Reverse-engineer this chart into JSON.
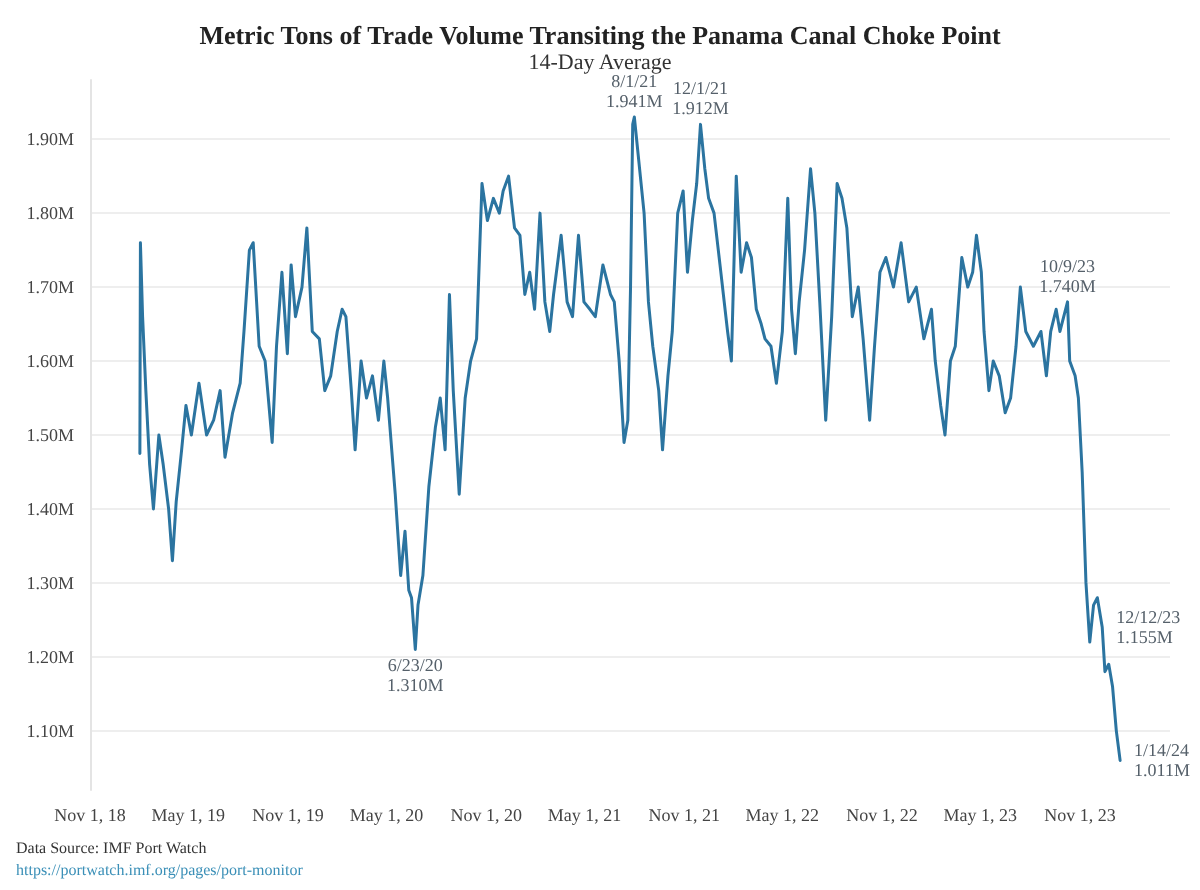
{
  "chart_data": {
    "type": "line",
    "title": "Metric Tons of Trade Volume Transiting the Panama Canal Choke Point",
    "subtitle": "14-Day Average",
    "x": [
      "2019-02-01",
      "2019-02-02",
      "2019-02-06",
      "2019-02-12",
      "2019-02-19",
      "2019-02-26",
      "2019-03-08",
      "2019-03-16",
      "2019-03-26",
      "2019-04-02",
      "2019-04-09",
      "2019-04-19",
      "2019-04-27",
      "2019-05-07",
      "2019-05-21",
      "2019-06-04",
      "2019-06-17",
      "2019-06-29",
      "2019-07-08",
      "2019-07-22",
      "2019-08-05",
      "2019-08-12",
      "2019-08-22",
      "2019-08-29",
      "2019-09-09",
      "2019-09-20",
      "2019-10-03",
      "2019-10-11",
      "2019-10-21",
      "2019-10-31",
      "2019-11-07",
      "2019-11-15",
      "2019-11-27",
      "2019-12-06",
      "2019-12-16",
      "2019-12-29",
      "2020-01-08",
      "2020-01-19",
      "2020-01-31",
      "2020-02-09",
      "2020-02-16",
      "2020-02-26",
      "2020-03-04",
      "2020-03-15",
      "2020-03-25",
      "2020-04-05",
      "2020-04-16",
      "2020-04-26",
      "2020-05-03",
      "2020-05-17",
      "2020-05-27",
      "2020-06-04",
      "2020-06-11",
      "2020-06-16",
      "2020-06-23",
      "2020-06-28",
      "2020-07-07",
      "2020-07-18",
      "2020-07-30",
      "2020-08-08",
      "2020-08-17",
      "2020-08-25",
      "2020-09-01",
      "2020-09-12",
      "2020-09-23",
      "2020-10-03",
      "2020-10-14",
      "2020-10-24",
      "2020-11-03",
      "2020-11-14",
      "2020-11-25",
      "2020-12-02",
      "2020-12-12",
      "2020-12-23",
      "2021-01-02",
      "2021-01-11",
      "2021-01-20",
      "2021-01-29",
      "2021-02-08",
      "2021-02-17",
      "2021-02-26",
      "2021-03-05",
      "2021-03-19",
      "2021-03-30",
      "2021-04-09",
      "2021-04-20",
      "2021-04-30",
      "2021-05-11",
      "2021-05-21",
      "2021-06-04",
      "2021-06-18",
      "2021-06-25",
      "2021-07-04",
      "2021-07-13",
      "2021-07-20",
      "2021-07-25",
      "2021-07-29",
      "2021-08-01",
      "2021-08-19",
      "2021-08-27",
      "2021-09-04",
      "2021-09-15",
      "2021-09-22",
      "2021-10-02",
      "2021-10-10",
      "2021-10-20",
      "2021-10-30",
      "2021-11-07",
      "2021-11-16",
      "2021-11-24",
      "2021-12-01",
      "2021-12-09",
      "2021-12-16",
      "2021-12-26",
      "2022-01-06",
      "2022-01-20",
      "2022-01-27",
      "2022-02-05",
      "2022-02-14",
      "2022-02-24",
      "2022-03-05",
      "2022-03-14",
      "2022-03-23",
      "2022-03-30",
      "2022-04-10",
      "2022-04-20",
      "2022-05-01",
      "2022-05-11",
      "2022-05-18",
      "2022-05-25",
      "2022-06-01",
      "2022-06-11",
      "2022-06-22",
      "2022-06-30",
      "2022-07-09",
      "2022-07-20",
      "2022-07-31",
      "2022-08-10",
      "2022-08-19",
      "2022-08-28",
      "2022-09-07",
      "2022-09-18",
      "2022-09-27",
      "2022-10-09",
      "2022-10-18",
      "2022-10-28",
      "2022-11-08",
      "2022-11-22",
      "2022-12-06",
      "2022-12-20",
      "2023-01-03",
      "2023-01-17",
      "2023-01-31",
      "2023-02-07",
      "2023-02-17",
      "2023-02-25",
      "2023-03-07",
      "2023-03-16",
      "2023-03-28",
      "2023-04-08",
      "2023-04-17",
      "2023-04-24",
      "2023-05-03",
      "2023-05-08",
      "2023-05-17",
      "2023-05-25",
      "2023-06-05",
      "2023-06-16",
      "2023-06-26",
      "2023-07-06",
      "2023-07-14",
      "2023-07-24",
      "2023-08-07",
      "2023-08-21",
      "2023-08-31",
      "2023-09-08",
      "2023-09-18",
      "2023-09-25",
      "2023-10-09",
      "2023-10-13",
      "2023-10-23",
      "2023-10-29",
      "2023-11-05",
      "2023-11-12",
      "2023-11-19",
      "2023-11-26",
      "2023-12-03",
      "2023-12-12",
      "2023-12-17",
      "2023-12-24",
      "2023-12-31",
      "2024-01-07",
      "2024-01-14"
    ],
    "series": [
      {
        "color": "#2b74a0",
        "values": [
          1.475,
          1.76,
          1.66,
          1.56,
          1.46,
          1.4,
          1.5,
          1.46,
          1.4,
          1.33,
          1.41,
          1.48,
          1.54,
          1.5,
          1.57,
          1.5,
          1.52,
          1.56,
          1.47,
          1.53,
          1.57,
          1.64,
          1.75,
          1.76,
          1.62,
          1.6,
          1.49,
          1.62,
          1.72,
          1.61,
          1.73,
          1.66,
          1.7,
          1.78,
          1.64,
          1.63,
          1.56,
          1.58,
          1.64,
          1.67,
          1.66,
          1.56,
          1.48,
          1.6,
          1.55,
          1.58,
          1.52,
          1.6,
          1.55,
          1.42,
          1.31,
          1.37,
          1.29,
          1.28,
          1.21,
          1.27,
          1.31,
          1.43,
          1.51,
          1.55,
          1.48,
          1.69,
          1.56,
          1.42,
          1.55,
          1.6,
          1.63,
          1.84,
          1.79,
          1.82,
          1.8,
          1.83,
          1.85,
          1.78,
          1.77,
          1.69,
          1.72,
          1.67,
          1.8,
          1.68,
          1.64,
          1.69,
          1.77,
          1.68,
          1.66,
          1.77,
          1.68,
          1.67,
          1.66,
          1.73,
          1.69,
          1.68,
          1.6,
          1.49,
          1.52,
          1.7,
          1.92,
          1.93,
          1.8,
          1.68,
          1.62,
          1.56,
          1.48,
          1.58,
          1.64,
          1.8,
          1.83,
          1.72,
          1.79,
          1.84,
          1.92,
          1.86,
          1.82,
          1.8,
          1.73,
          1.64,
          1.6,
          1.85,
          1.72,
          1.76,
          1.74,
          1.67,
          1.65,
          1.63,
          1.62,
          1.57,
          1.64,
          1.82,
          1.67,
          1.61,
          1.68,
          1.75,
          1.86,
          1.8,
          1.68,
          1.52,
          1.66,
          1.84,
          1.82,
          1.78,
          1.66,
          1.7,
          1.63,
          1.52,
          1.62,
          1.72,
          1.74,
          1.7,
          1.76,
          1.68,
          1.7,
          1.63,
          1.67,
          1.6,
          1.54,
          1.5,
          1.6,
          1.62,
          1.74,
          1.7,
          1.72,
          1.77,
          1.72,
          1.64,
          1.56,
          1.6,
          1.58,
          1.53,
          1.55,
          1.62,
          1.7,
          1.64,
          1.62,
          1.64,
          1.58,
          1.64,
          1.67,
          1.64,
          1.68,
          1.6,
          1.58,
          1.55,
          1.45,
          1.3,
          1.22,
          1.27,
          1.28,
          1.24,
          1.18,
          1.19,
          1.16,
          1.1,
          1.06
        ]
      }
    ],
    "xlim": [
      "2018-11-01",
      "2024-04-15"
    ],
    "xticks": [
      {
        "value": "2018-11-01",
        "label": "Nov 1, 18"
      },
      {
        "value": "2019-05-01",
        "label": "May 1, 19"
      },
      {
        "value": "2019-11-01",
        "label": "Nov 1, 19"
      },
      {
        "value": "2020-05-01",
        "label": "May 1, 20"
      },
      {
        "value": "2020-11-01",
        "label": "Nov 1, 20"
      },
      {
        "value": "2021-05-01",
        "label": "May 1, 21"
      },
      {
        "value": "2021-11-01",
        "label": "Nov 1, 21"
      },
      {
        "value": "2022-05-01",
        "label": "May 1, 22"
      },
      {
        "value": "2022-11-01",
        "label": "Nov 1, 22"
      },
      {
        "value": "2023-05-01",
        "label": "May 1, 23"
      },
      {
        "value": "2023-11-01",
        "label": "Nov 1, 23"
      }
    ],
    "ylim": [
      1.02,
      1.98
    ],
    "yticks": [
      {
        "value": 1.1,
        "label": "1.10M"
      },
      {
        "value": 1.2,
        "label": "1.20M"
      },
      {
        "value": 1.3,
        "label": "1.30M"
      },
      {
        "value": 1.4,
        "label": "1.40M"
      },
      {
        "value": 1.5,
        "label": "1.50M"
      },
      {
        "value": 1.6,
        "label": "1.60M"
      },
      {
        "value": 1.7,
        "label": "1.70M"
      },
      {
        "value": 1.8,
        "label": "1.80M"
      },
      {
        "value": 1.9,
        "label": "1.90M"
      }
    ],
    "grid": "y",
    "marker": "none",
    "line_style": "solid",
    "annotations": [
      {
        "text": "8/1/21\n1.941M",
        "x": "2021-08-01",
        "y": 1.93
      },
      {
        "text": "12/1/21\n1.912M",
        "x": "2021-12-01",
        "y": 1.92
      },
      {
        "text": "6/23/20\n1.310M",
        "x": "2020-06-23",
        "y": 1.21
      },
      {
        "text": "10/9/23\n1.740M",
        "x": "2023-10-09",
        "y": 1.68
      },
      {
        "text": "12/12/23\n1.155M",
        "x": "2023-12-12",
        "y": 1.24
      },
      {
        "text": "1/14/24\n1.011M",
        "x": "2024-01-14",
        "y": 1.06
      },
      "Data Source: IMF Port Watch",
      "https://portwatch.imf.org/pages/port-monitor"
    ]
  }
}
